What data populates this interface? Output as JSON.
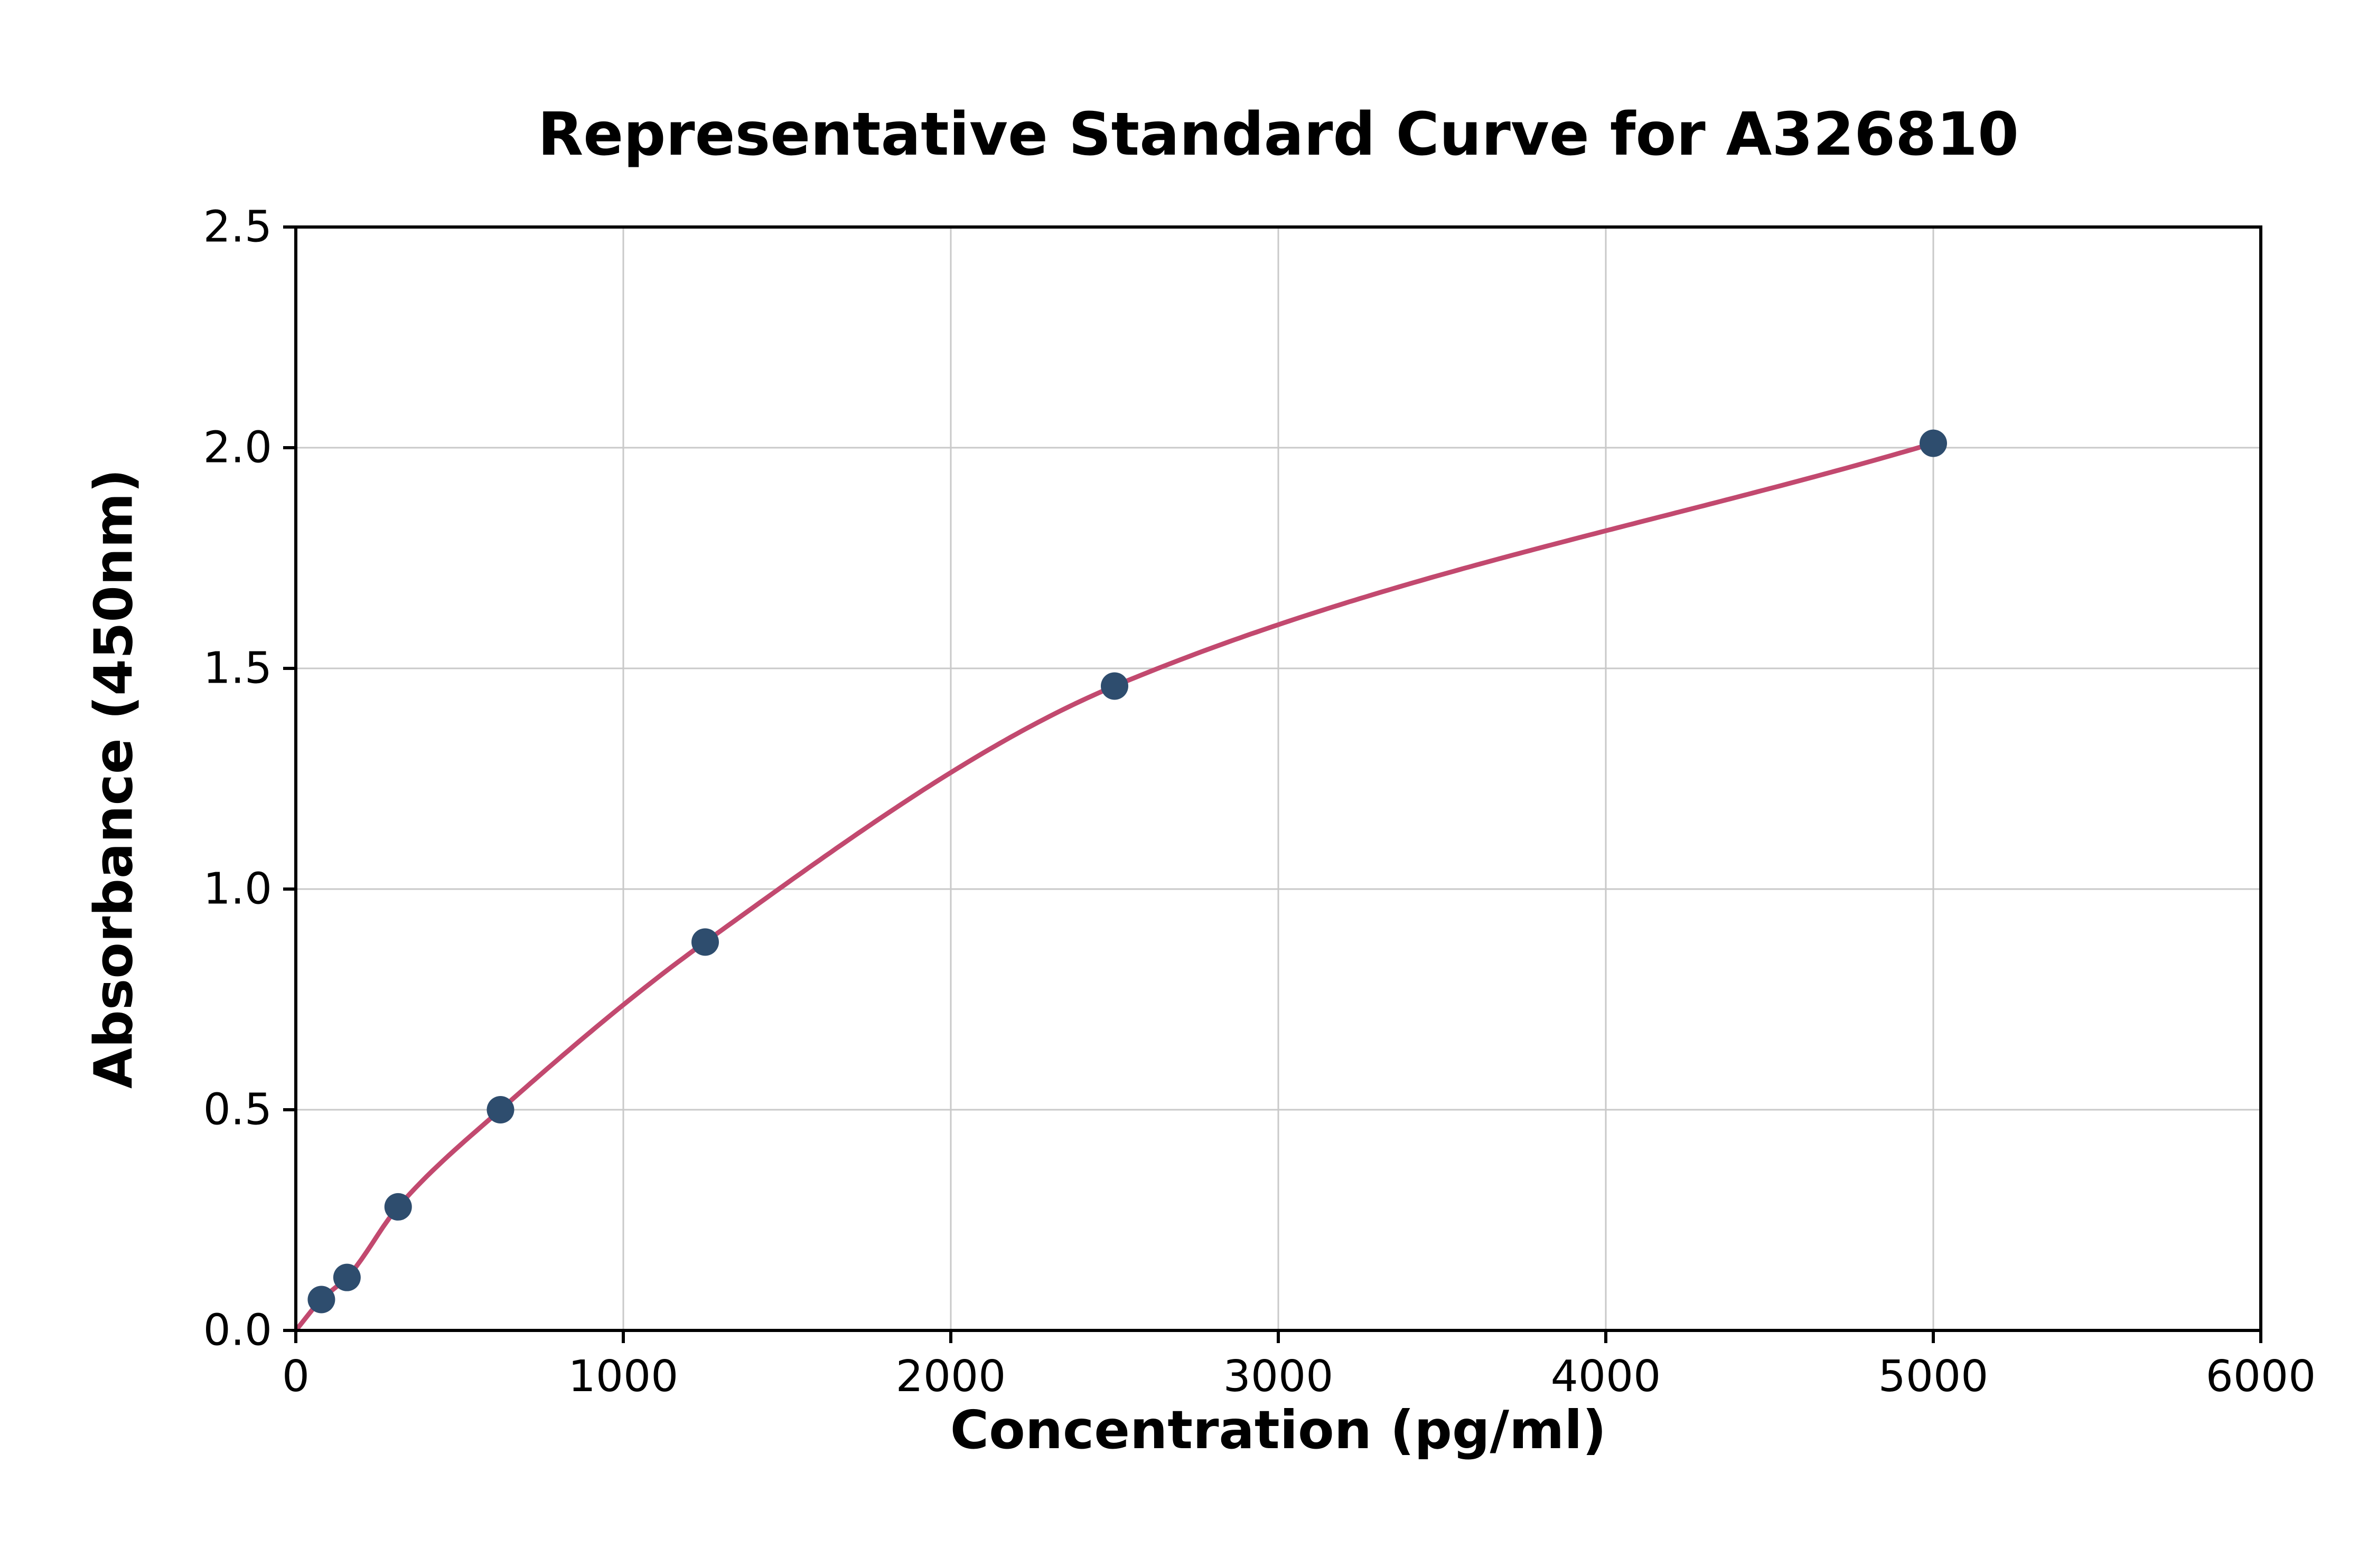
{
  "chart_data": {
    "type": "scatter",
    "title": "Representative Standard Curve for A326810",
    "xlabel": "Concentration (pg/ml)",
    "ylabel": "Absorbance (450nm)",
    "xlim": [
      0,
      6000
    ],
    "ylim": [
      0,
      2.5
    ],
    "x_ticks": [
      0,
      1000,
      2000,
      3000,
      4000,
      5000,
      6000
    ],
    "y_ticks": [
      0.0,
      0.5,
      1.0,
      1.5,
      2.0,
      2.5
    ],
    "grid": true,
    "legend": "none",
    "series": [
      {
        "name": "standard-points",
        "x": [
          78.13,
          156.25,
          312.5,
          625,
          1250,
          2500,
          5000
        ],
        "y": [
          0.07,
          0.12,
          0.28,
          0.5,
          0.88,
          1.46,
          2.01
        ]
      }
    ],
    "fit_curve": {
      "description": "smooth saturating fit through origin and all standard points",
      "x": [
        0,
        78.13,
        156.25,
        312.5,
        625,
        1250,
        2500,
        5000
      ],
      "y": [
        0.0,
        0.07,
        0.12,
        0.28,
        0.5,
        0.88,
        1.46,
        2.01
      ]
    },
    "colors": {
      "marker": "#2e4d6e",
      "curve": "#c2496f",
      "grid": "#c9c9c9",
      "axis": "#000000",
      "background": "#ffffff"
    }
  }
}
